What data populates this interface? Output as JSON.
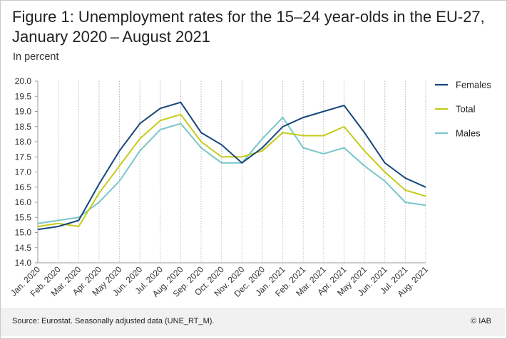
{
  "title": "Figure 1: Unemployment rates for the 15–24 year-olds in the EU-27,",
  "title_line2": "January 2020 – August 2021",
  "subtitle": "In percent",
  "source": "Source: Eurostat. Seasonally adjusted data (UNE_RT_M).",
  "copyright": "© IAB",
  "chart_data": {
    "type": "line",
    "categories": [
      "Jan. 2020",
      "Feb. 2020",
      "Mar. 2020",
      "Apr. 2020",
      "May 2020",
      "Jun. 2020",
      "Jul. 2020",
      "Aug. 2020",
      "Sep. 2020",
      "Oct. 2020",
      "Nov. 2020",
      "Dec. 2020",
      "Jan. 2021",
      "Feb. 2021",
      "Mar. 2021",
      "Apr. 2021",
      "May 2021",
      "Jun. 2021",
      "Jul. 2021",
      "Aug. 2021"
    ],
    "ylim": [
      14.0,
      20.0
    ],
    "yticks": [
      "14.0",
      "14.5",
      "15.0",
      "15.5",
      "16.0",
      "16.5",
      "17.0",
      "17.5",
      "18.0",
      "18.5",
      "19.0",
      "19.5",
      "20.0"
    ],
    "grid": "vertical dotted",
    "legend": "right",
    "series": [
      {
        "name": "Females",
        "color": "#17477a",
        "values": [
          15.1,
          15.2,
          15.4,
          16.6,
          17.7,
          18.6,
          19.1,
          19.3,
          18.3,
          17.9,
          17.3,
          17.8,
          18.5,
          18.8,
          19.0,
          19.2,
          18.3,
          17.3,
          16.8,
          16.5
        ]
      },
      {
        "name": "Total",
        "color": "#c5cc1a",
        "values": [
          15.2,
          15.3,
          15.2,
          16.3,
          17.2,
          18.1,
          18.7,
          18.9,
          18.0,
          17.5,
          17.5,
          17.7,
          18.3,
          18.2,
          18.2,
          18.5,
          17.7,
          17.0,
          16.4,
          16.2
        ]
      },
      {
        "name": "Males",
        "color": "#79c7c9",
        "values": [
          15.3,
          15.4,
          15.5,
          16.0,
          16.7,
          17.7,
          18.4,
          18.6,
          17.8,
          17.3,
          17.3,
          18.1,
          18.8,
          17.8,
          17.6,
          17.8,
          17.2,
          16.7,
          16.0,
          15.9
        ]
      }
    ]
  }
}
